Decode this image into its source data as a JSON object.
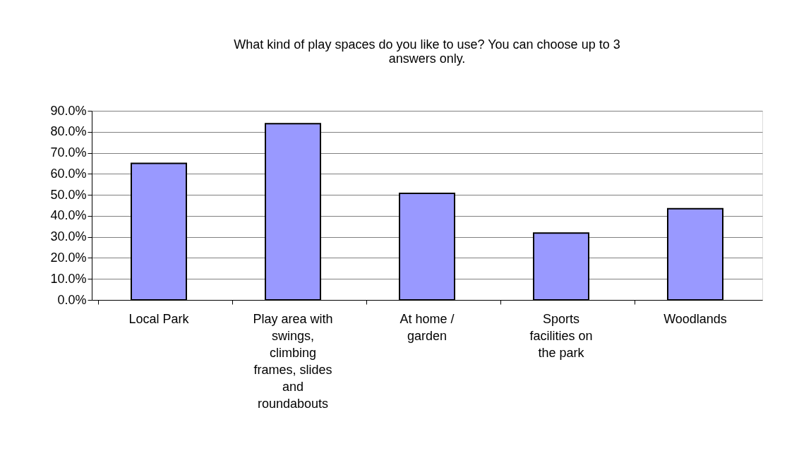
{
  "chart_data": {
    "type": "bar",
    "title": "What kind of play spaces do you like to use? You can choose up to 3 answers only.",
    "categories": [
      "Local Park",
      "Play area with swings, climbing frames, slides and roundabouts",
      "At home / garden",
      "Sports facilities on the park",
      "Woodlands"
    ],
    "values": [
      65.0,
      83.9,
      50.7,
      31.8,
      43.4
    ],
    "color": "#9999ff",
    "ylim": [
      0,
      90
    ],
    "yticks": [
      {
        "value": 0,
        "label": "0.0%"
      },
      {
        "value": 10,
        "label": "10.0%"
      },
      {
        "value": 20,
        "label": "20.0%"
      },
      {
        "value": 30,
        "label": "30.0%"
      },
      {
        "value": 40,
        "label": "40.0%"
      },
      {
        "value": 50,
        "label": "50.0%"
      },
      {
        "value": 60,
        "label": "60.0%"
      },
      {
        "value": 70,
        "label": "70.0%"
      },
      {
        "value": 80,
        "label": "80.0%"
      },
      {
        "value": 90,
        "label": "90.0%"
      }
    ],
    "grid": "y"
  }
}
